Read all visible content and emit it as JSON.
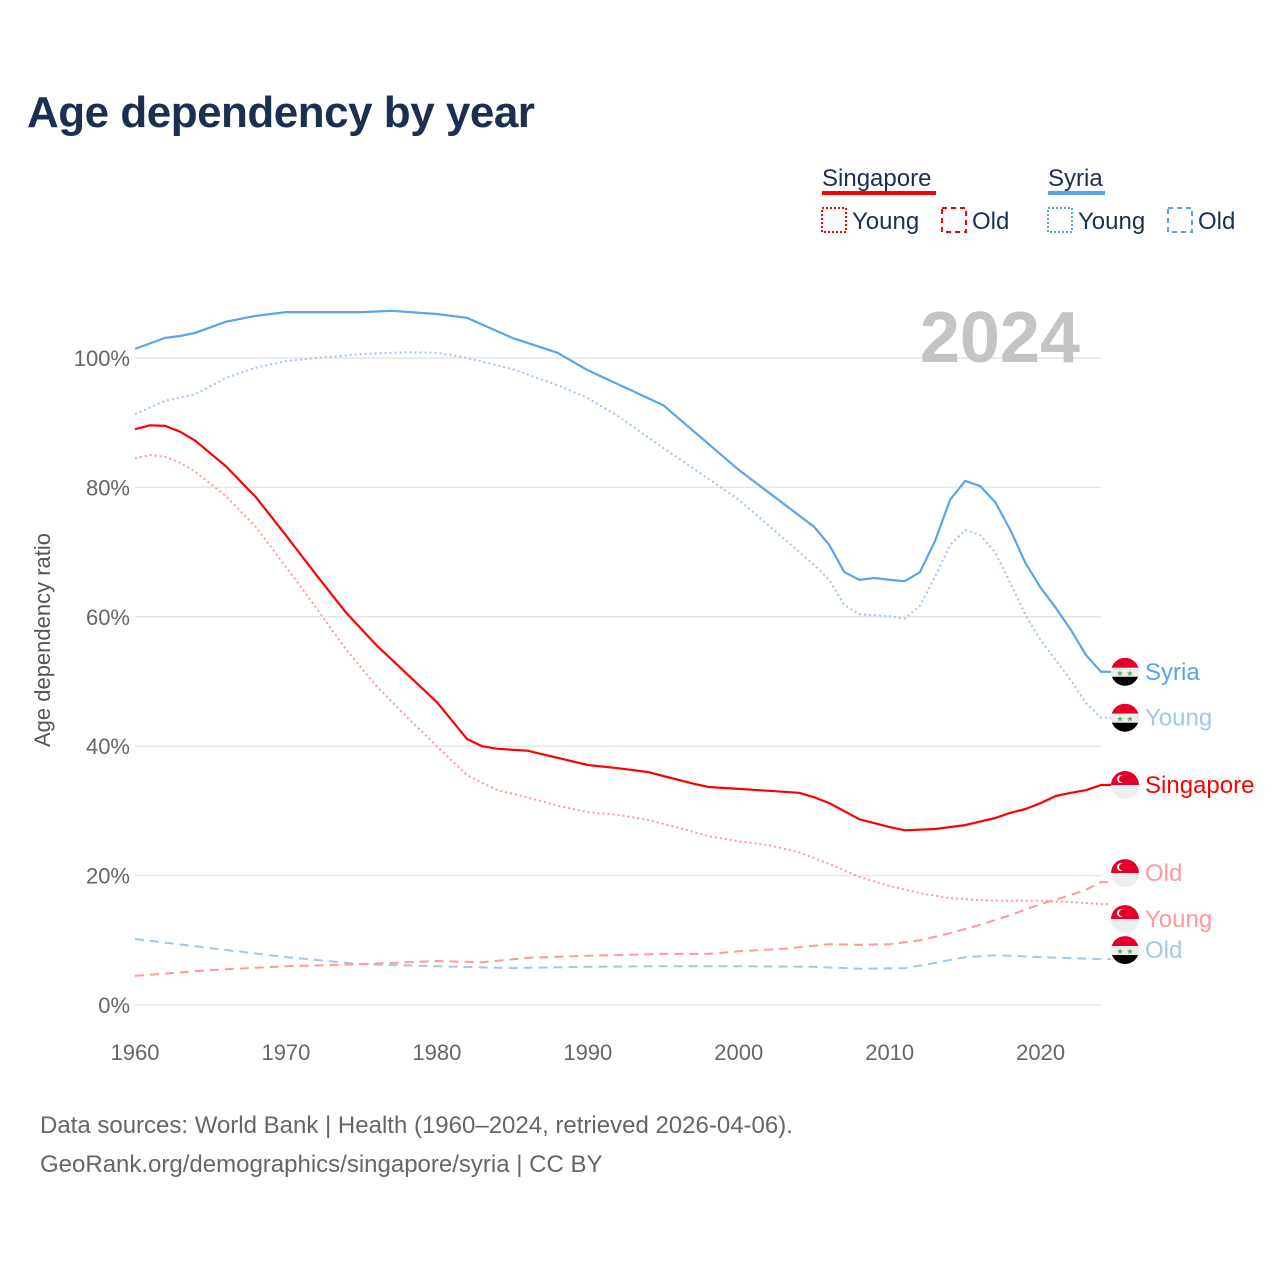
{
  "title": "Age dependency by year",
  "year_watermark": "2024",
  "legend": {
    "countries": [
      {
        "name": "Singapore",
        "color": "#ff0000",
        "items": [
          "Young",
          "Old"
        ]
      },
      {
        "name": "Syria",
        "color": "#5ba3ea",
        "items": [
          "Young",
          "Old"
        ]
      }
    ]
  },
  "footer": {
    "line1": "Data sources: World Bank | Health (1960–2024, retrieved 2026-04-06).",
    "line2": "GeoRank.org/demographics/singapore/syria | CC BY"
  },
  "chart_data": {
    "type": "line",
    "title": "Age dependency by year",
    "xlabel": "",
    "ylabel": "Age dependency ratio",
    "xlim": [
      1960,
      2024
    ],
    "ylim": [
      0,
      110
    ],
    "x_ticks": [
      "1960",
      "1970",
      "1980",
      "1990",
      "2000",
      "2010",
      "2020"
    ],
    "y_ticks": [
      "0%",
      "20%",
      "40%",
      "60%",
      "80%",
      "100%"
    ],
    "grid": true,
    "legend_position": "top-right",
    "series": [
      {
        "name": "Syria",
        "label": "Syria",
        "country": "Syria",
        "kind": "total",
        "color": "#5ba3ea",
        "dash": "solid",
        "x": [
          1960,
          1962,
          1963,
          1964,
          1966,
          1968,
          1970,
          1972,
          1975,
          1977,
          1980,
          1982,
          1985,
          1988,
          1990,
          1995,
          2000,
          2005,
          2006,
          2007,
          2008,
          2009,
          2010,
          2011,
          2012,
          2013,
          2014,
          2015,
          2016,
          2017,
          2018,
          2019,
          2020,
          2021,
          2022,
          2023,
          2024
        ],
        "y": [
          101.4,
          103.1,
          103.4,
          103.9,
          105.6,
          106.5,
          107.1,
          107.1,
          107.1,
          107.3,
          106.8,
          106.2,
          103.1,
          100.8,
          98.1,
          92.7,
          82.7,
          73.9,
          71.1,
          66.9,
          65.7,
          66.0,
          65.7,
          65.5,
          66.9,
          71.7,
          78.1,
          81.0,
          80.2,
          77.7,
          73.4,
          68.3,
          64.5,
          61.4,
          58.0,
          54.1,
          51.5
        ]
      },
      {
        "name": "Syria Young",
        "label": "Young",
        "country": "Syria",
        "kind": "young",
        "color": "#a3c6ee",
        "dash": "dotted",
        "x": [
          1960,
          1962,
          1964,
          1966,
          1968,
          1970,
          1972,
          1975,
          1978,
          1980,
          1982,
          1985,
          1988,
          1990,
          1992,
          1995,
          2000,
          2005,
          2006,
          2007,
          2008,
          2010,
          2011,
          2012,
          2013,
          2014,
          2015,
          2016,
          2017,
          2018,
          2019,
          2020,
          2021,
          2022,
          2023,
          2024
        ],
        "y": [
          91.3,
          93.4,
          94.4,
          96.9,
          98.5,
          99.5,
          100.0,
          100.6,
          100.9,
          100.8,
          100.0,
          98.3,
          95.8,
          93.8,
          91.0,
          86.1,
          78.1,
          68.0,
          65.7,
          61.8,
          60.4,
          60.1,
          59.7,
          61.7,
          66.2,
          71.1,
          73.4,
          72.6,
          69.9,
          65.2,
          60.3,
          56.4,
          53.3,
          50.2,
          46.7,
          44.4
        ]
      },
      {
        "name": "Syria Old",
        "label": "Old",
        "country": "Syria",
        "kind": "old",
        "color": "#a3c6ee",
        "dash": "dashed",
        "x": [
          1960,
          1965,
          1970,
          1975,
          1980,
          1985,
          1990,
          1995,
          2000,
          2005,
          2008,
          2011,
          2013,
          2015,
          2017,
          2020,
          2024
        ],
        "y": [
          10.2,
          8.8,
          7.4,
          6.3,
          6.0,
          5.7,
          5.9,
          6.0,
          6.0,
          5.9,
          5.6,
          5.7,
          6.5,
          7.4,
          7.7,
          7.4,
          7.1
        ]
      },
      {
        "name": "Singapore",
        "label": "Singapore",
        "country": "Singapore",
        "kind": "total",
        "color": "#ff0000",
        "dash": "solid",
        "x": [
          1960,
          1961,
          1962,
          1963,
          1964,
          1966,
          1968,
          1970,
          1972,
          1974,
          1976,
          1978,
          1980,
          1982,
          1983,
          1984,
          1986,
          1988,
          1990,
          1992,
          1994,
          1995,
          1997,
          1998,
          2000,
          2002,
          2004,
          2005,
          2006,
          2008,
          2010,
          2011,
          2013,
          2015,
          2017,
          2018,
          2019,
          2020,
          2021,
          2022,
          2023,
          2024
        ],
        "y": [
          89.0,
          89.6,
          89.5,
          88.6,
          87.2,
          83.3,
          78.5,
          72.6,
          66.5,
          60.6,
          55.6,
          51.2,
          46.8,
          41.1,
          40.0,
          39.6,
          39.3,
          38.2,
          37.1,
          36.6,
          36.0,
          35.4,
          34.2,
          33.7,
          33.4,
          33.1,
          32.8,
          32.1,
          31.2,
          28.7,
          27.5,
          27.0,
          27.2,
          27.8,
          28.9,
          29.7,
          30.3,
          31.2,
          32.3,
          32.8,
          33.2,
          34.0
        ]
      },
      {
        "name": "Singapore Old",
        "label": "Old",
        "country": "Singapore",
        "kind": "old",
        "color": "#ff9999",
        "dash": "dashed",
        "x": [
          1960,
          1965,
          1970,
          1975,
          1980,
          1983,
          1986,
          1990,
          1995,
          1998,
          2000,
          2003,
          2006,
          2008,
          2010,
          2012,
          2014,
          2016,
          2018,
          2020,
          2022,
          2023,
          2024
        ],
        "y": [
          4.5,
          5.4,
          6.0,
          6.3,
          6.8,
          6.6,
          7.3,
          7.6,
          7.9,
          7.9,
          8.3,
          8.7,
          9.4,
          9.3,
          9.4,
          10.0,
          11.1,
          12.4,
          13.9,
          15.6,
          17.0,
          17.8,
          19.0
        ]
      },
      {
        "name": "Singapore Young",
        "label": "Young",
        "country": "Singapore",
        "kind": "young",
        "color": "#ff9999",
        "dash": "dotted",
        "x": [
          1960,
          1961,
          1962,
          1963,
          1964,
          1966,
          1968,
          1970,
          1972,
          1974,
          1976,
          1978,
          1980,
          1982,
          1984,
          1986,
          1988,
          1990,
          1992,
          1994,
          1996,
          1998,
          2000,
          2002,
          2004,
          2006,
          2008,
          2010,
          2012,
          2014,
          2016,
          2018,
          2020,
          2022,
          2024
        ],
        "y": [
          84.5,
          85.0,
          84.7,
          83.8,
          82.4,
          78.7,
          73.9,
          67.7,
          61.4,
          54.9,
          49.3,
          44.5,
          40.0,
          35.5,
          33.2,
          32.1,
          30.8,
          29.8,
          29.4,
          28.6,
          27.4,
          26.1,
          25.3,
          24.7,
          23.6,
          21.8,
          19.8,
          18.4,
          17.3,
          16.5,
          16.2,
          16.1,
          16.1,
          15.9,
          15.6
        ]
      }
    ]
  }
}
